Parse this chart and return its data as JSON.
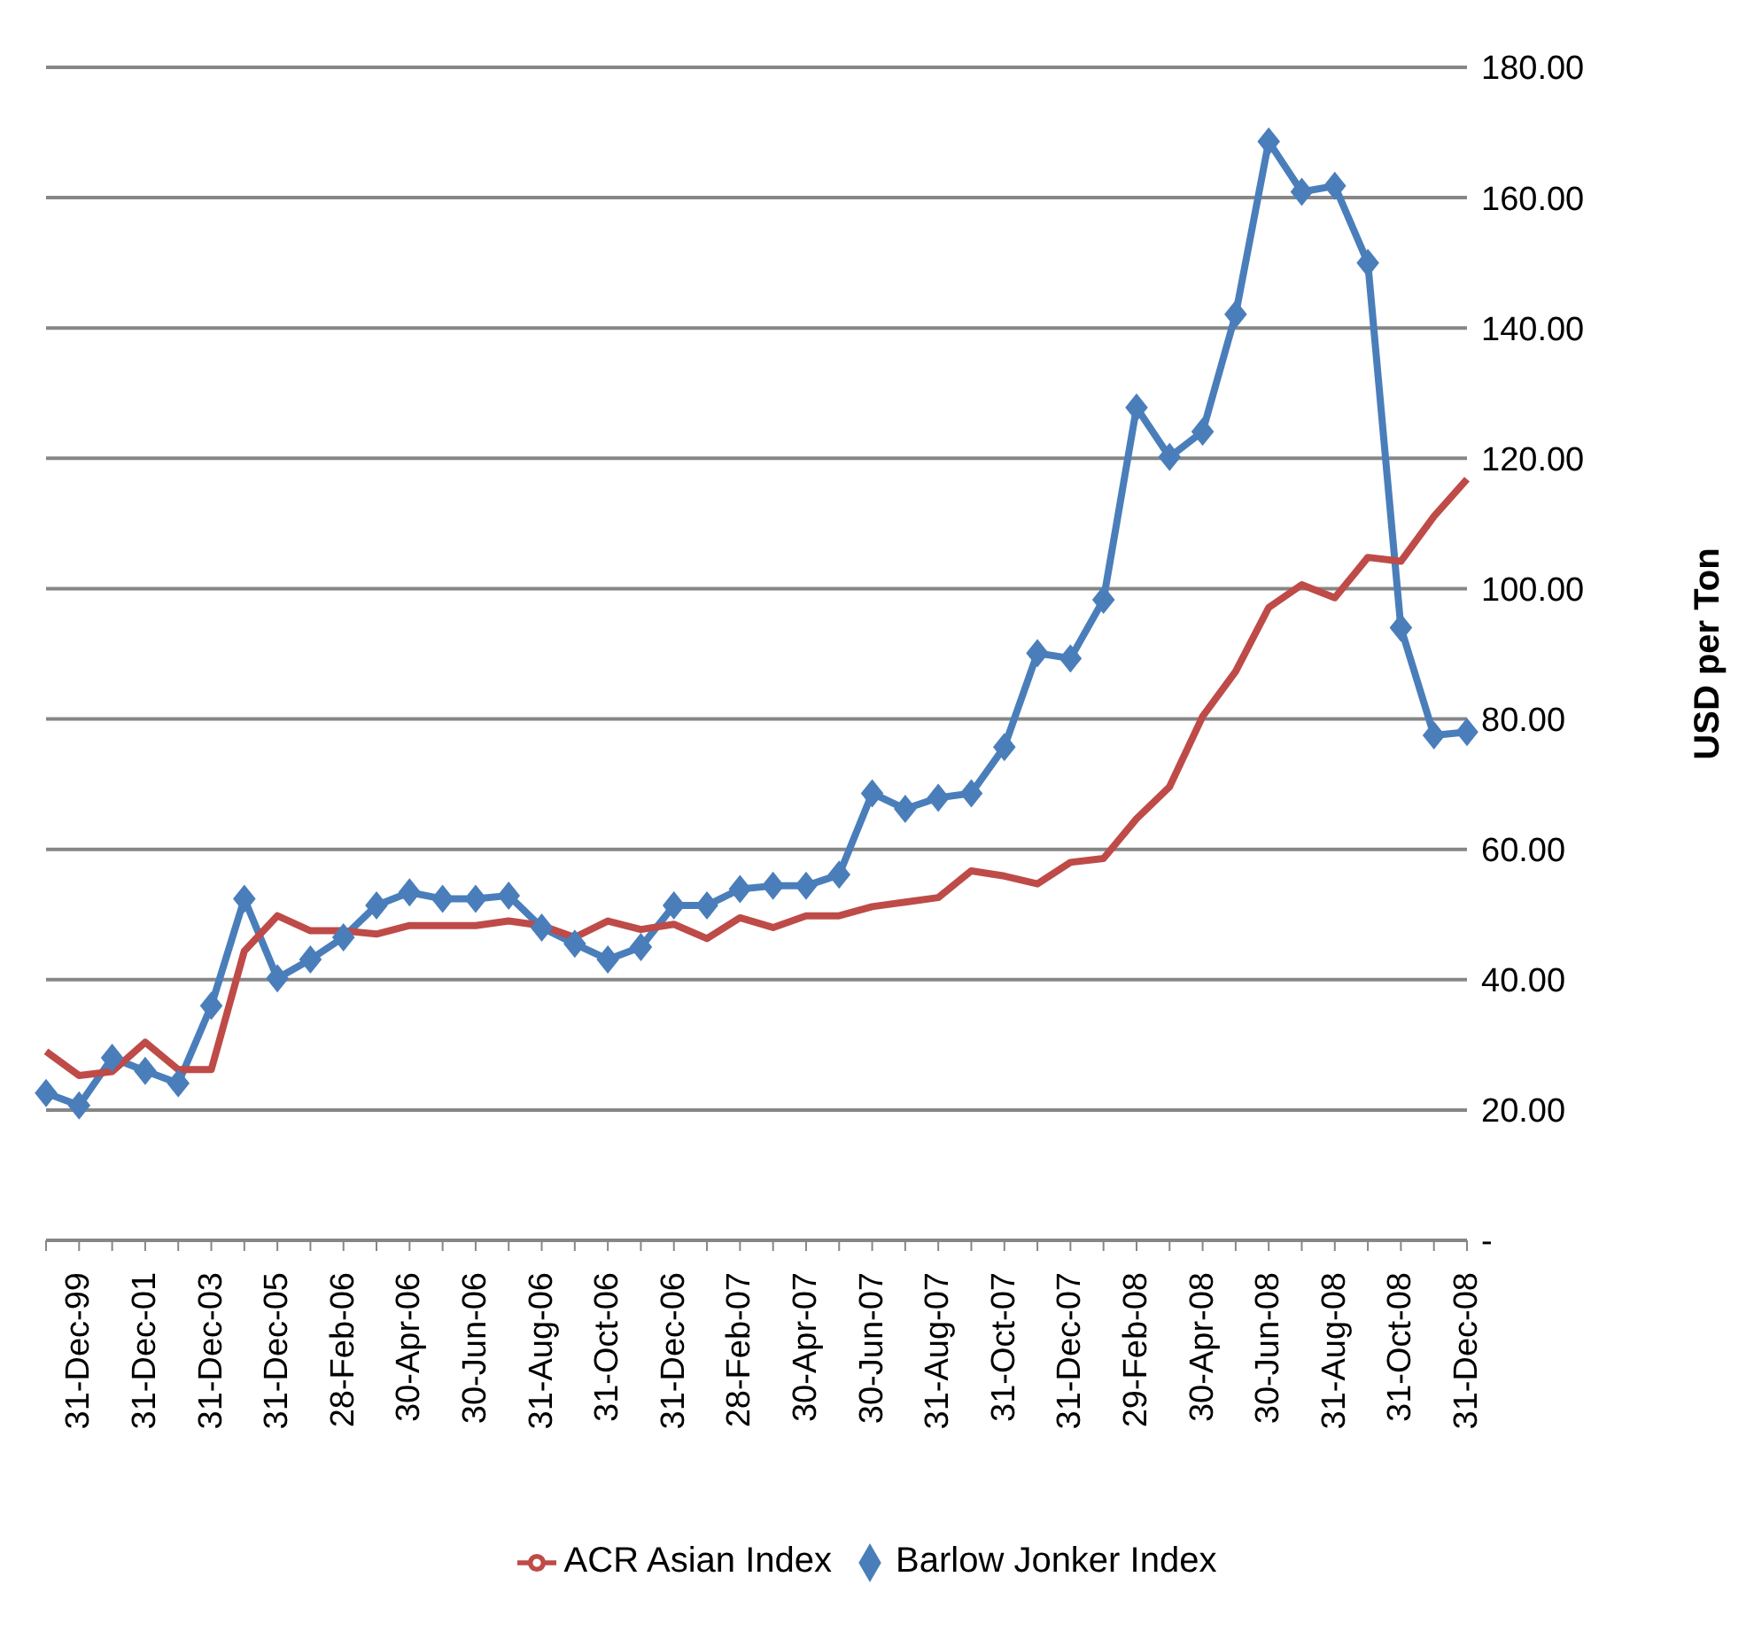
{
  "chart_data": {
    "type": "line",
    "ylabel": "USD per Ton",
    "categories": [
      null,
      "31-Dec-99",
      null,
      "31-Dec-01",
      null,
      "31-Dec-03",
      null,
      "31-Dec-05",
      null,
      "28-Feb-06",
      null,
      "30-Apr-06",
      null,
      "30-Jun-06",
      null,
      "31-Aug-06",
      null,
      "31-Oct-06",
      null,
      "31-Dec-06",
      null,
      "28-Feb-07",
      null,
      "30-Apr-07",
      null,
      "30-Jun-07",
      null,
      "31-Aug-07",
      null,
      "31-Oct-07",
      null,
      "31-Dec-07",
      null,
      "29-Feb-08",
      null,
      "30-Apr-08",
      null,
      "30-Jun-08",
      null,
      "31-Aug-08",
      null,
      "31-Oct-08",
      null,
      "31-Dec-08"
    ],
    "series": [
      {
        "name": "Barlow Jonker Index",
        "color": "#4a7ebb",
        "marker": "diamond",
        "values": [
          22.6,
          20.7,
          28.0,
          26.0,
          24.1,
          36.0,
          52.4,
          40.2,
          43.1,
          46.5,
          51.4,
          53.4,
          52.4,
          52.4,
          52.9,
          48.0,
          45.5,
          43.1,
          45.0,
          51.4,
          51.4,
          53.9,
          54.4,
          54.4,
          56.1,
          68.6,
          66.2,
          67.9,
          68.6,
          75.7,
          90.1,
          89.3,
          98.3,
          127.8,
          120.2,
          124.1,
          142.1,
          168.6,
          160.9,
          161.8,
          150,
          94,
          77.5,
          78
        ]
      },
      {
        "name": "ACR Asian Index",
        "color": "#be4b48",
        "marker": "none",
        "values": [
          29,
          25.3,
          25.9,
          30.4,
          26.2,
          26.2,
          44.4,
          49.8,
          47.5,
          47.5,
          47.0,
          48.3,
          48.3,
          48.3,
          49.0,
          48.3,
          46.5,
          49.0,
          47.7,
          48.5,
          46.3,
          49.5,
          48.0,
          49.8,
          49.8,
          51.2,
          51.9,
          52.6,
          56.7,
          55.9,
          54.7,
          58,
          58.6,
          64.7,
          69.6,
          80.4,
          87.3,
          97.1,
          100.6,
          98.6,
          104.8,
          104.2,
          111.1,
          116.8
        ]
      }
    ],
    "ylim": [
      0,
      180
    ],
    "yticks": [
      {
        "value": 0,
        "label": "-"
      },
      {
        "value": 20,
        "label": "20.00"
      },
      {
        "value": 40,
        "label": "40.00"
      },
      {
        "value": 60,
        "label": "60.00"
      },
      {
        "value": 80,
        "label": "80.00"
      },
      {
        "value": 100,
        "label": "100.00"
      },
      {
        "value": 120,
        "label": "120.00"
      },
      {
        "value": 140,
        "label": "140.00"
      },
      {
        "value": 160,
        "label": "160.00"
      },
      {
        "value": 180,
        "label": "180.00"
      }
    ],
    "grid": "y",
    "legend": "bottom",
    "line_style": "solid"
  }
}
